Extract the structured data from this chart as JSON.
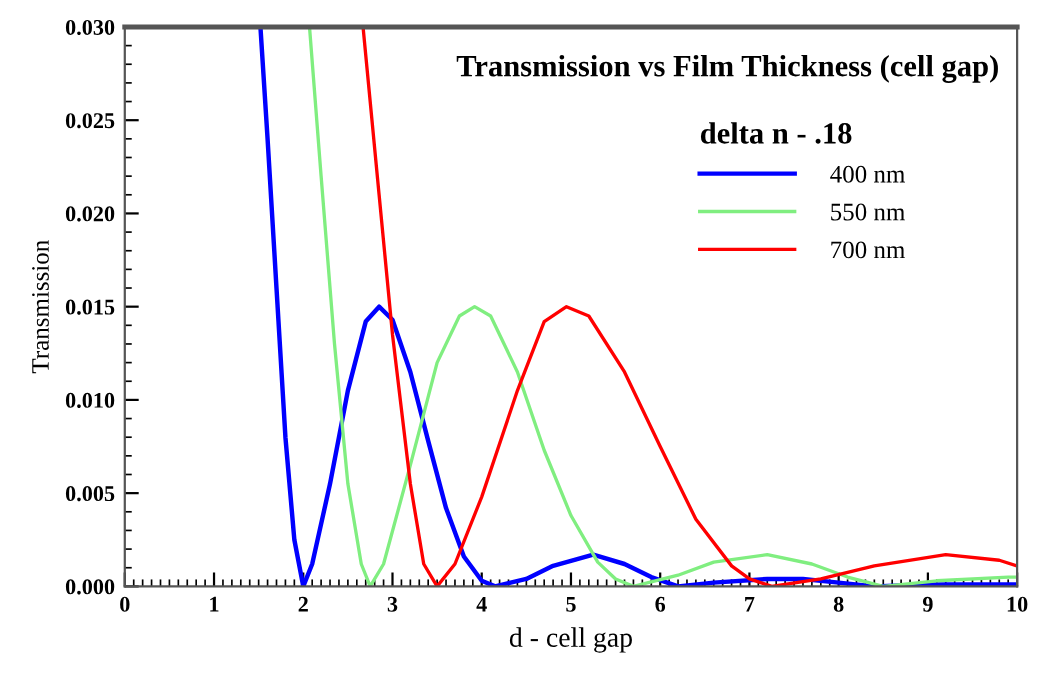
{
  "chart_data": {
    "type": "line",
    "title": "Transmission vs Film Thickness (cell gap)",
    "xlabel": "d - cell gap",
    "ylabel": "Transmission",
    "legend_title": "delta n - .18",
    "xlim": [
      0,
      10
    ],
    "xticks": [
      0,
      1,
      2,
      3,
      4,
      5,
      6,
      7,
      8,
      9,
      10
    ],
    "ylim": [
      0,
      0.03
    ],
    "yticks": [
      {
        "value": 0,
        "label": "0.000"
      },
      {
        "value": 0.005,
        "label": "0.005"
      },
      {
        "value": 0.01,
        "label": "0.010"
      },
      {
        "value": 0.015,
        "label": "0.015"
      },
      {
        "value": 0.02,
        "label": "0.020"
      },
      {
        "value": 0.025,
        "label": "0.025"
      },
      {
        "value": 0.03,
        "label": "0.030"
      }
    ],
    "grid": false,
    "legend": "top right",
    "marker": "none",
    "line_style": "solid",
    "series": [
      {
        "name": "400 nm",
        "color": "#0000ff",
        "x": [
          1.52,
          1.6,
          1.7,
          1.8,
          1.9,
          2.0,
          2.1,
          2.3,
          2.5,
          2.7,
          2.85,
          3.0,
          3.2,
          3.4,
          3.6,
          3.8,
          4.0,
          4.15,
          4.5,
          4.8,
          5.25,
          5.6,
          5.9,
          6.2,
          6.6,
          7.2,
          7.6,
          8.0,
          8.4,
          9.0,
          10
        ],
        "values": [
          0.03,
          0.024,
          0.016,
          0.008,
          0.0025,
          0.0,
          0.0012,
          0.0055,
          0.0105,
          0.0142,
          0.015,
          0.0143,
          0.0115,
          0.0078,
          0.0042,
          0.0016,
          0.0003,
          0.0,
          0.0004,
          0.0011,
          0.0017,
          0.0012,
          0.0005,
          0.0,
          0.0002,
          0.0004,
          0.0004,
          0.0002,
          0.0,
          0.0001,
          0.0001
        ]
      },
      {
        "name": "550 nm",
        "color": "#80ee80",
        "x": [
          2.07,
          2.2,
          2.35,
          2.5,
          2.65,
          2.75,
          2.9,
          3.2,
          3.5,
          3.75,
          3.92,
          4.1,
          4.4,
          4.7,
          5.0,
          5.3,
          5.5,
          5.7,
          6.2,
          6.6,
          7.2,
          7.7,
          8.1,
          8.5,
          9.1,
          9.9,
          10
        ],
        "values": [
          0.03,
          0.022,
          0.013,
          0.0055,
          0.0012,
          0.0,
          0.0012,
          0.0065,
          0.012,
          0.0145,
          0.015,
          0.0145,
          0.0115,
          0.0073,
          0.0038,
          0.0013,
          0.0004,
          0.0,
          0.0006,
          0.0013,
          0.0017,
          0.0012,
          0.0005,
          0.0,
          0.0003,
          0.0005,
          0.0005
        ]
      },
      {
        "name": "700 nm",
        "color": "#ff0000",
        "x": [
          2.67,
          2.85,
          3.0,
          3.2,
          3.35,
          3.5,
          3.7,
          4.0,
          4.4,
          4.7,
          4.95,
          5.2,
          5.6,
          6.0,
          6.4,
          6.8,
          7.0,
          7.25,
          7.8,
          8.4,
          9.2,
          9.8,
          10
        ],
        "values": [
          0.03,
          0.021,
          0.0135,
          0.0055,
          0.0012,
          0.0,
          0.0012,
          0.0048,
          0.0105,
          0.0142,
          0.015,
          0.0145,
          0.0115,
          0.0075,
          0.0036,
          0.0011,
          0.0004,
          0.0,
          0.0004,
          0.0011,
          0.0017,
          0.0014,
          0.0011
        ]
      }
    ]
  }
}
